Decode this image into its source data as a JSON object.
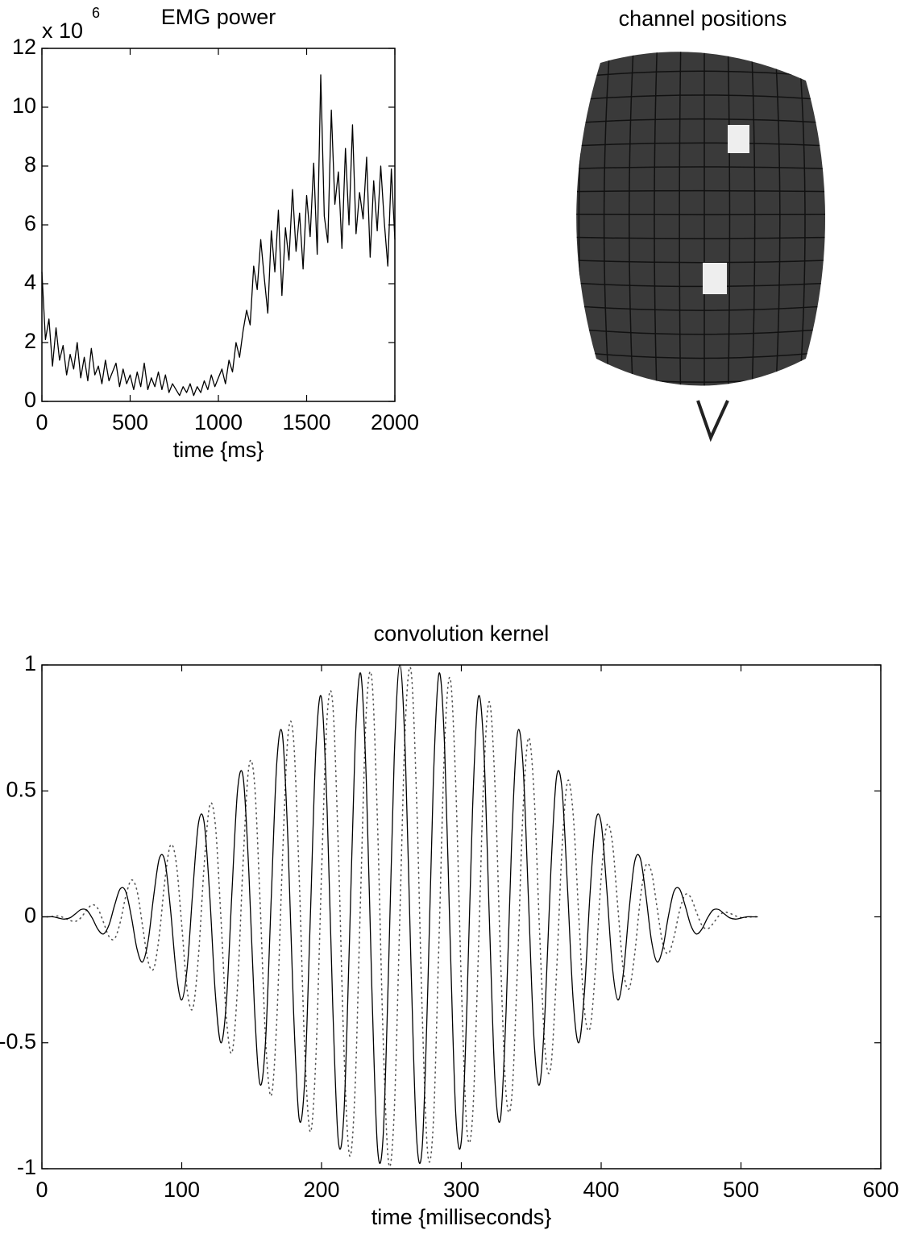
{
  "chart_data": [
    {
      "type": "line",
      "title": "EMG power",
      "xlabel": "time {ms}",
      "y_multiplier": "x 10",
      "y_multiplier_exponent": "6",
      "color": "#000000",
      "x": [
        0,
        20,
        40,
        60,
        80,
        100,
        120,
        140,
        160,
        180,
        200,
        220,
        240,
        260,
        280,
        300,
        320,
        340,
        360,
        380,
        400,
        420,
        440,
        460,
        480,
        500,
        520,
        540,
        560,
        580,
        600,
        620,
        640,
        660,
        680,
        700,
        720,
        740,
        760,
        780,
        800,
        820,
        840,
        860,
        880,
        900,
        920,
        940,
        960,
        980,
        1000,
        1020,
        1040,
        1060,
        1080,
        1100,
        1120,
        1140,
        1160,
        1180,
        1200,
        1220,
        1240,
        1260,
        1280,
        1300,
        1320,
        1340,
        1360,
        1380,
        1400,
        1420,
        1440,
        1460,
        1480,
        1500,
        1520,
        1540,
        1560,
        1580,
        1600,
        1620,
        1640,
        1660,
        1680,
        1700,
        1720,
        1740,
        1760,
        1780,
        1800,
        1820,
        1840,
        1860,
        1880,
        1900,
        1920,
        1940,
        1960,
        1980,
        2000
      ],
      "values": [
        4.4,
        2.1,
        2.8,
        1.2,
        2.5,
        1.4,
        1.9,
        0.9,
        1.6,
        1.1,
        2.0,
        0.8,
        1.5,
        0.7,
        1.8,
        0.9,
        1.2,
        0.6,
        1.4,
        0.7,
        1.0,
        1.3,
        0.5,
        1.1,
        0.6,
        0.9,
        0.4,
        1.0,
        0.5,
        1.3,
        0.4,
        0.8,
        0.5,
        1.0,
        0.4,
        0.9,
        0.3,
        0.6,
        0.4,
        0.2,
        0.5,
        0.3,
        0.6,
        0.2,
        0.5,
        0.3,
        0.7,
        0.4,
        0.9,
        0.5,
        0.8,
        1.1,
        0.6,
        1.4,
        1.0,
        2.0,
        1.5,
        2.4,
        3.1,
        2.6,
        4.6,
        3.8,
        5.5,
        4.2,
        3.0,
        5.8,
        4.4,
        6.5,
        3.6,
        5.9,
        4.8,
        7.2,
        5.1,
        6.4,
        4.5,
        7.0,
        5.6,
        8.1,
        5.0,
        11.1,
        6.3,
        5.4,
        9.9,
        6.7,
        7.8,
        5.2,
        8.6,
        6.0,
        9.4,
        5.7,
        7.1,
        6.2,
        8.3,
        4.9,
        7.5,
        5.8,
        8.0,
        6.1,
        4.6,
        7.9,
        5.5
      ],
      "xlim": [
        0,
        2000
      ],
      "ylim": [
        0,
        12
      ],
      "xticks": [
        0,
        500,
        1000,
        1500,
        2000
      ],
      "yticks": [
        0,
        2,
        4,
        6,
        8,
        10,
        12
      ]
    },
    {
      "type": "head",
      "title": "channel positions"
    },
    {
      "type": "line",
      "title": "convolution kernel",
      "xlabel": "time {milliseconds}",
      "x": [
        0,
        4,
        8,
        12,
        16,
        20,
        24,
        28,
        32,
        36,
        40,
        44,
        48,
        52,
        56,
        60,
        64,
        68,
        72,
        76,
        80,
        84,
        88,
        92,
        96,
        100,
        104,
        108,
        112,
        116,
        120,
        124,
        128,
        132,
        136,
        140,
        144,
        148,
        152,
        156,
        160,
        164,
        168,
        172,
        176,
        180,
        184,
        188,
        192,
        196,
        200,
        204,
        208,
        212,
        216,
        220,
        224,
        228,
        232,
        236,
        240,
        244,
        248,
        252,
        256,
        260,
        264,
        268,
        272,
        276,
        280,
        284,
        288,
        292,
        296,
        300,
        304,
        308,
        312,
        316,
        320,
        324,
        328,
        332,
        336,
        340,
        344,
        348,
        352,
        356,
        360,
        364,
        368,
        372,
        376,
        380,
        384,
        388,
        392,
        396,
        400,
        404,
        408,
        412,
        416,
        420,
        424,
        428,
        432,
        436,
        440,
        444,
        448,
        452,
        456,
        460,
        464,
        468,
        472,
        476,
        480,
        484,
        488,
        492,
        496,
        500,
        504,
        508,
        512
      ],
      "series": [
        {
          "color": "#000000",
          "style": "solid",
          "values": [
            0,
            0,
            0,
            -0.005,
            -0.009,
            -0.004,
            0.012,
            0.029,
            0.027,
            -0.005,
            -0.049,
            -0.068,
            -0.032,
            0.046,
            0.111,
            0.1,
            0,
            -0.127,
            -0.179,
            -0.095,
            0.085,
            0.232,
            0.22,
            0.028,
            -0.218,
            -0.33,
            -0.197,
            0.11,
            0.372,
            0.376,
            0.088,
            -0.302,
            -0.5,
            -0.333,
            0.107,
            0.506,
            0.552,
            0.18,
            -0.358,
            -0.665,
            -0.489,
            0.07,
            0.612,
            0.724,
            0.298,
            -0.376,
            -0.802,
            -0.646,
            0,
            0.673,
            0.869,
            0.425,
            -0.35,
            -0.889,
            -0.782,
            -0.093,
            0.68,
            0.966,
            0.544,
            -0.286,
            -0.915,
            -0.877,
            -0.195,
            0.634,
            1,
            0.634,
            -0.195,
            -0.877,
            -0.915,
            -0.286,
            0.544,
            0.966,
            0.68,
            -0.093,
            -0.782,
            -0.889,
            -0.35,
            0.425,
            0.869,
            0.673,
            0,
            -0.646,
            -0.802,
            -0.376,
            0.298,
            0.724,
            0.612,
            0.07,
            -0.489,
            -0.665,
            -0.358,
            0.18,
            0.552,
            0.506,
            0.107,
            -0.333,
            -0.5,
            -0.302,
            0.088,
            0.376,
            0.372,
            0.11,
            -0.197,
            -0.33,
            -0.218,
            0.028,
            0.22,
            0.232,
            0.085,
            -0.095,
            -0.179,
            -0.127,
            0,
            0.1,
            0.111,
            0.046,
            -0.032,
            -0.068,
            -0.049,
            -0.005,
            0.027,
            0.029,
            0.012,
            -0.004,
            -0.009,
            -0.005,
            0,
            0,
            0
          ]
        },
        {
          "color": "#555555",
          "style": "dotted",
          "values": [
            0,
            0,
            0.002,
            0.003,
            -0.004,
            -0.014,
            -0.018,
            -0.003,
            0.027,
            0.048,
            0.033,
            -0.021,
            -0.078,
            -0.087,
            -0.022,
            0.082,
            0.146,
            0.104,
            -0.036,
            -0.178,
            -0.205,
            -0.071,
            0.147,
            0.285,
            0.218,
            -0.032,
            -0.295,
            -0.362,
            -0.154,
            0.201,
            0.442,
            0.368,
            0,
            -0.405,
            -0.538,
            -0.27,
            0.229,
            0.595,
            0.536,
            0.066,
            -0.489,
            -0.71,
            -0.409,
            0.22,
            0.719,
            0.704,
            0.159,
            -0.53,
            -0.854,
            -0.552,
            0.173,
            0.795,
            0.846,
            0.27,
            -0.523,
            -0.947,
            -0.68,
            0.095,
            0.814,
            0.943,
            0.379,
            -0.469,
            -0.978,
            -0.773,
            0,
            0.773,
            0.978,
            0.469,
            -0.379,
            -0.943,
            -0.814,
            -0.095,
            0.68,
            0.947,
            0.523,
            -0.27,
            -0.846,
            -0.795,
            -0.173,
            0.552,
            0.854,
            0.53,
            -0.159,
            -0.704,
            -0.719,
            -0.22,
            0.409,
            0.71,
            0.489,
            -0.066,
            -0.536,
            -0.595,
            -0.229,
            0.27,
            0.538,
            0.405,
            0,
            -0.368,
            -0.442,
            -0.201,
            0.154,
            0.362,
            0.295,
            0.032,
            -0.218,
            -0.285,
            -0.147,
            0.071,
            0.205,
            0.178,
            0.036,
            -0.104,
            -0.146,
            -0.082,
            0.022,
            0.087,
            0.078,
            0.021,
            -0.033,
            -0.048,
            -0.027,
            0.003,
            0.018,
            0.014,
            0.004,
            -0.003,
            -0.002,
            0,
            0
          ]
        }
      ],
      "xlim": [
        0,
        600
      ],
      "ylim": [
        -1,
        1
      ],
      "xticks": [
        0,
        100,
        200,
        300,
        400,
        500,
        600
      ],
      "yticks": [
        -1,
        -0.5,
        0,
        0.5,
        1
      ]
    }
  ]
}
